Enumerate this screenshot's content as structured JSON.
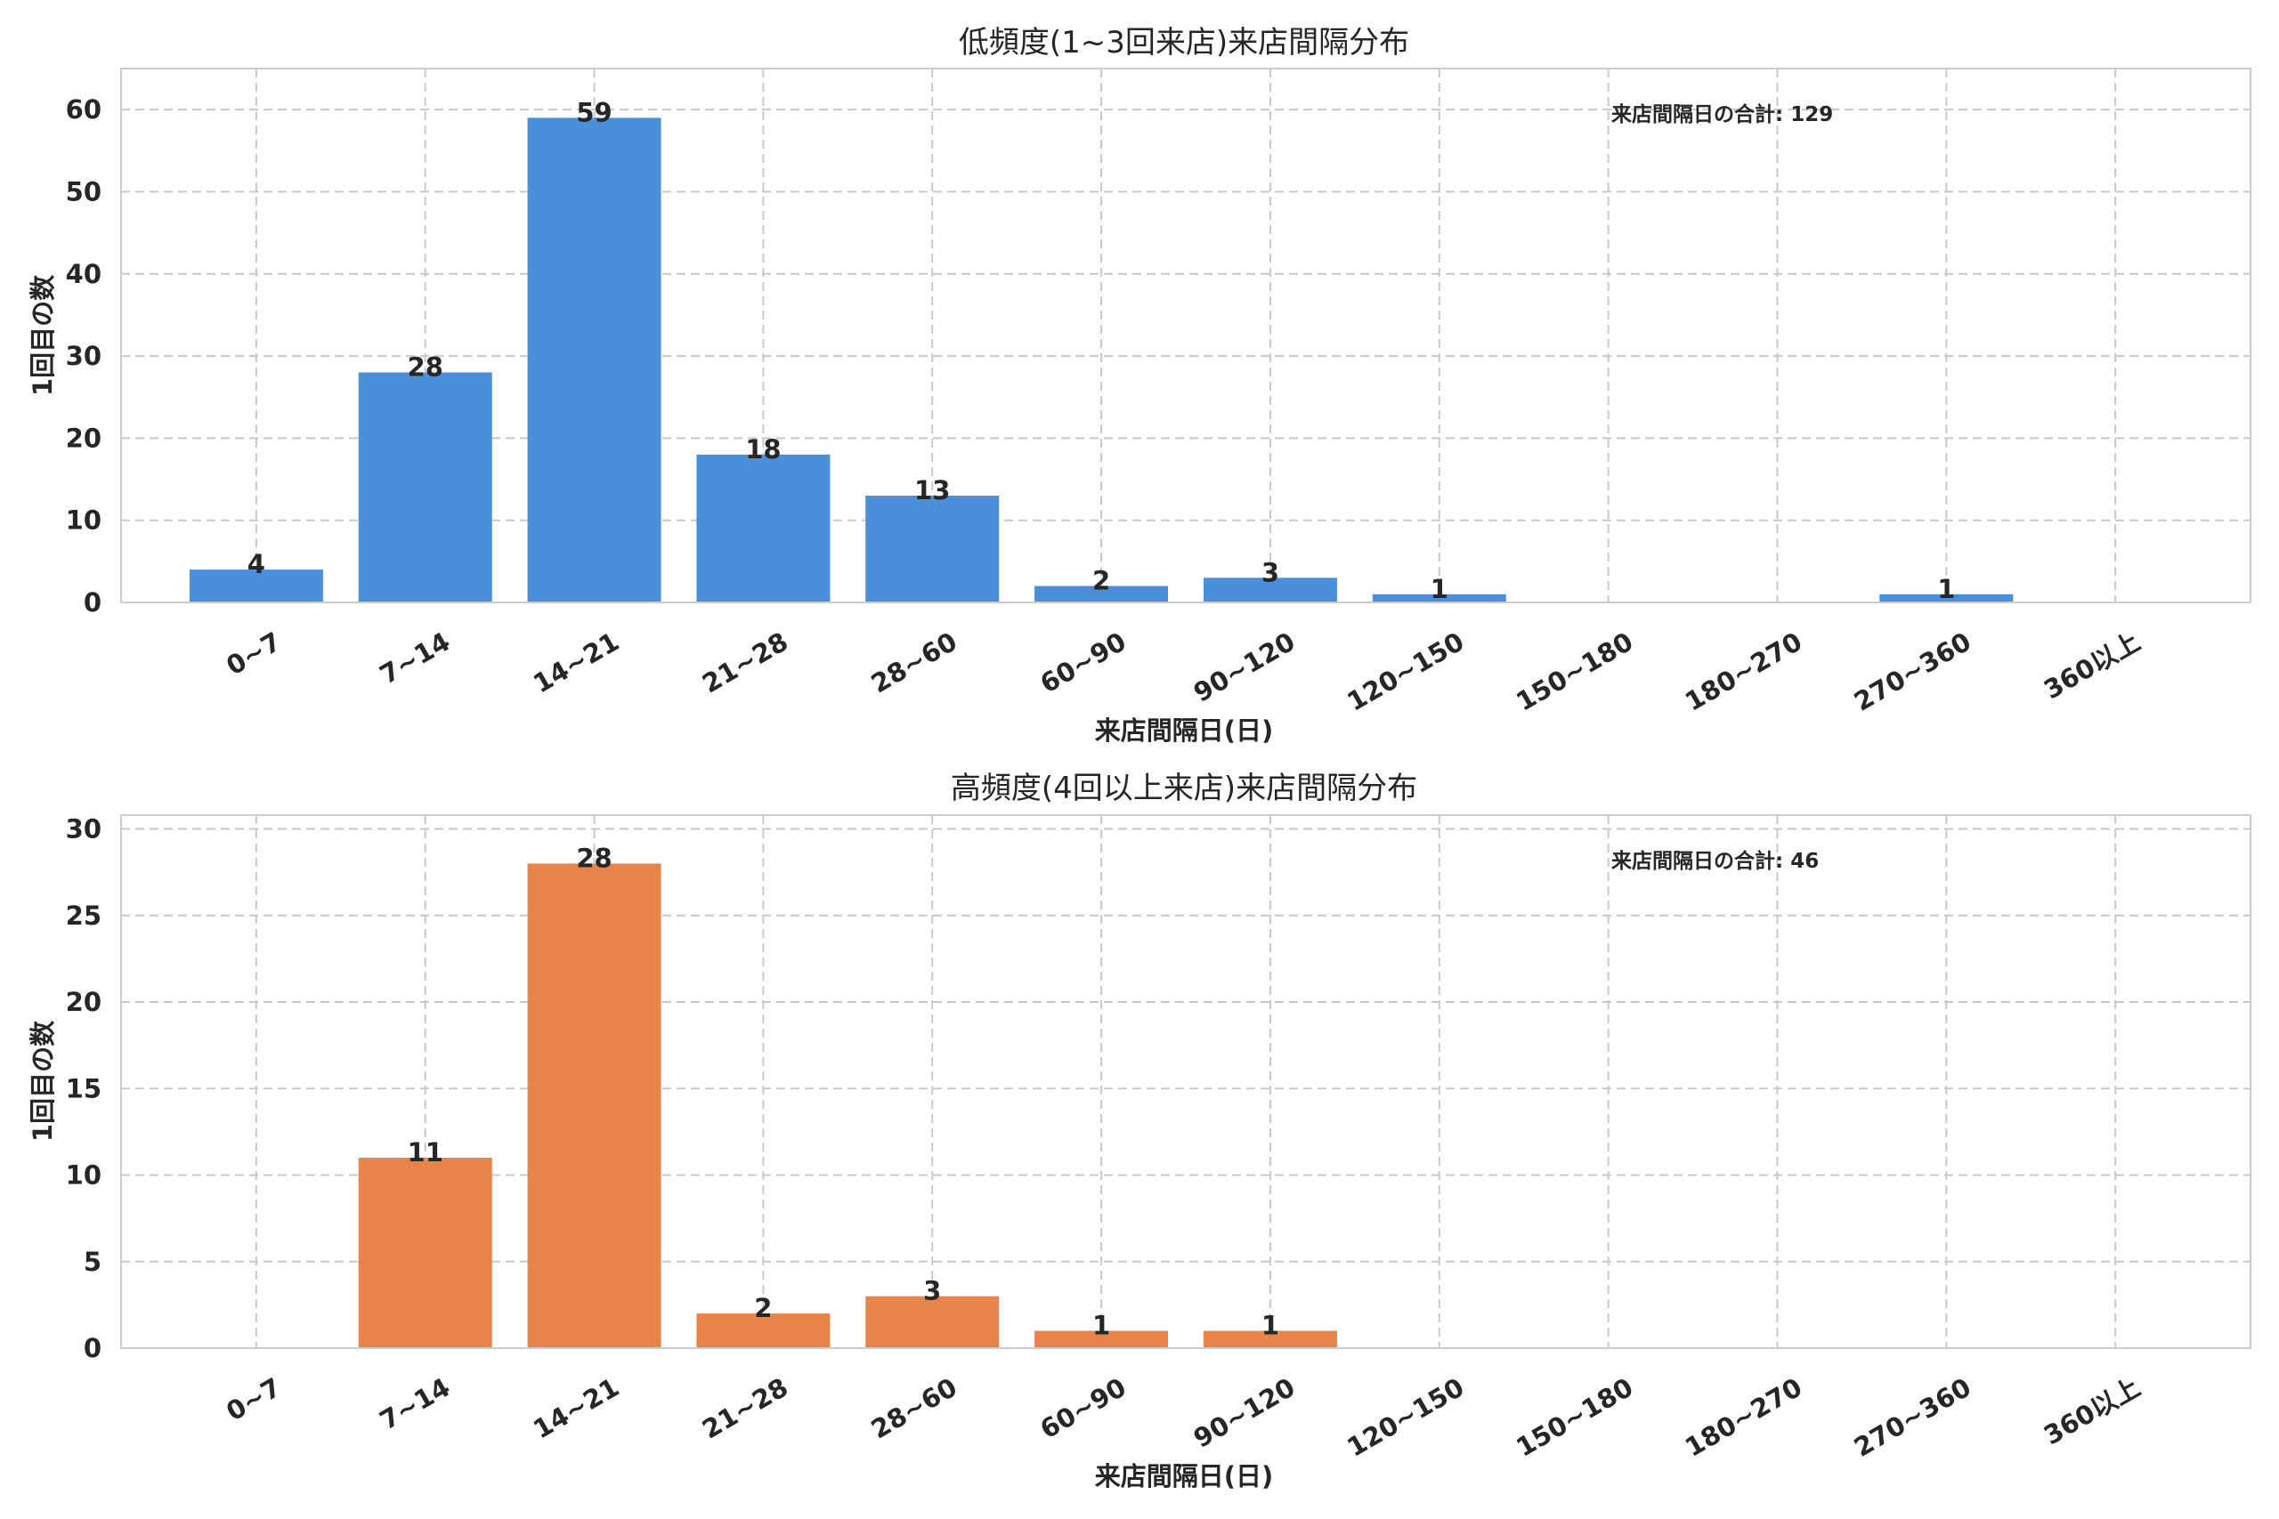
{
  "chart_data": [
    {
      "type": "bar",
      "title": "低頻度(1~3回来店)来店間隔分布",
      "xlabel": "来店間隔日(日)",
      "ylabel": "1回目の数",
      "categories": [
        "0~7",
        "7~14",
        "14~21",
        "21~28",
        "28~60",
        "60~90",
        "90~120",
        "120~150",
        "150~180",
        "180~270",
        "270~360",
        "360以上"
      ],
      "values": [
        4,
        28,
        59,
        18,
        13,
        2,
        3,
        1,
        0,
        0,
        1,
        0
      ],
      "ylim": [
        0,
        65
      ],
      "yticks": [
        0,
        10,
        20,
        30,
        40,
        50,
        60
      ],
      "annotation": "来店間隔日の合計: 129",
      "grid": true,
      "color": "#4A8FD9"
    },
    {
      "type": "bar",
      "title": "高頻度(4回以上来店)来店間隔分布",
      "xlabel": "来店間隔日(日)",
      "ylabel": "1回目の数",
      "categories": [
        "0~7",
        "7~14",
        "14~21",
        "21~28",
        "28~60",
        "60~90",
        "90~120",
        "120~150",
        "150~180",
        "180~270",
        "270~360",
        "360以上"
      ],
      "values": [
        0,
        11,
        28,
        2,
        3,
        1,
        1,
        0,
        0,
        0,
        0,
        0
      ],
      "ylim": [
        0,
        30.8
      ],
      "yticks": [
        0,
        5,
        10,
        15,
        20,
        25,
        30
      ],
      "annotation": "来店間隔日の合計: 46",
      "grid": true,
      "color": "#E8844A"
    }
  ]
}
